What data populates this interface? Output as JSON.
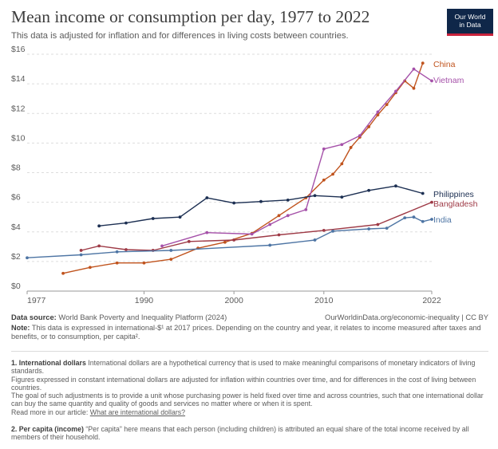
{
  "header": {
    "title": "Mean income or consumption per day, 1977 to 2022",
    "subtitle": "This data is adjusted for inflation and for differences in living costs between countries.",
    "logo_line1": "Our World",
    "logo_line2": "in Data"
  },
  "colors": {
    "China": "#c0531d",
    "Vietnam": "#a551a9",
    "Philippines": "#1c2f52",
    "Bangladesh": "#9e3a46",
    "India": "#4e75a4",
    "grid": "#dddddd",
    "text": "#5b5b5b"
  },
  "chart_data": {
    "type": "line",
    "xlim": [
      1977,
      2022
    ],
    "ylim": [
      0,
      16
    ],
    "y_ticks": [
      0,
      2,
      4,
      6,
      8,
      10,
      12,
      14,
      16
    ],
    "y_tick_labels": [
      "$0",
      "$2",
      "$4",
      "$6",
      "$8",
      "$10",
      "$12",
      "$14",
      "$16"
    ],
    "x_ticks": [
      1977,
      1990,
      2000,
      2010,
      2022
    ],
    "x_tick_labels": [
      "1977",
      "1990",
      "2000",
      "2010",
      "2022"
    ],
    "grid": "horizontal dashed",
    "legend": "line-end labels",
    "series": [
      {
        "name": "China",
        "points": [
          [
            1981,
            1.2
          ],
          [
            1984,
            1.6
          ],
          [
            1987,
            1.9
          ],
          [
            1990,
            1.9
          ],
          [
            1993,
            2.15
          ],
          [
            1996,
            2.9
          ],
          [
            1999,
            3.3
          ],
          [
            2002,
            3.9
          ],
          [
            2005,
            5.1
          ],
          [
            2008,
            6.3
          ],
          [
            2010,
            7.5
          ],
          [
            2011,
            7.9
          ],
          [
            2012,
            8.6
          ],
          [
            2013,
            9.7
          ],
          [
            2014,
            10.4
          ],
          [
            2015,
            11.1
          ],
          [
            2016,
            11.9
          ],
          [
            2017,
            12.6
          ],
          [
            2018,
            13.4
          ],
          [
            2019,
            14.2
          ],
          [
            2020,
            13.7
          ],
          [
            2021,
            15.4
          ]
        ]
      },
      {
        "name": "Vietnam",
        "points": [
          [
            1992,
            3.05
          ],
          [
            1997,
            3.95
          ],
          [
            2002,
            3.85
          ],
          [
            2004,
            4.5
          ],
          [
            2006,
            5.1
          ],
          [
            2008,
            5.5
          ],
          [
            2010,
            9.6
          ],
          [
            2012,
            9.9
          ],
          [
            2014,
            10.5
          ],
          [
            2016,
            12.1
          ],
          [
            2018,
            13.5
          ],
          [
            2020,
            15.0
          ],
          [
            2022,
            14.2
          ]
        ]
      },
      {
        "name": "Philippines",
        "points": [
          [
            1985,
            4.4
          ],
          [
            1988,
            4.6
          ],
          [
            1991,
            4.9
          ],
          [
            1994,
            5.0
          ],
          [
            1997,
            6.3
          ],
          [
            2000,
            5.95
          ],
          [
            2003,
            6.05
          ],
          [
            2006,
            6.15
          ],
          [
            2009,
            6.45
          ],
          [
            2012,
            6.35
          ],
          [
            2015,
            6.8
          ],
          [
            2018,
            7.1
          ],
          [
            2021,
            6.6
          ]
        ]
      },
      {
        "name": "Bangladesh",
        "points": [
          [
            1983,
            2.75
          ],
          [
            1985,
            3.05
          ],
          [
            1988,
            2.8
          ],
          [
            1991,
            2.75
          ],
          [
            1995,
            3.35
          ],
          [
            2000,
            3.45
          ],
          [
            2005,
            3.8
          ],
          [
            2010,
            4.1
          ],
          [
            2016,
            4.5
          ],
          [
            2022,
            6.0
          ]
        ]
      },
      {
        "name": "India",
        "points": [
          [
            1977,
            2.25
          ],
          [
            1983,
            2.45
          ],
          [
            1987,
            2.65
          ],
          [
            1993,
            2.75
          ],
          [
            2004,
            3.1
          ],
          [
            2009,
            3.45
          ],
          [
            2011,
            4.05
          ],
          [
            2015,
            4.2
          ],
          [
            2017,
            4.25
          ],
          [
            2019,
            4.95
          ],
          [
            2020,
            5.0
          ],
          [
            2021,
            4.7
          ],
          [
            2022,
            4.85
          ]
        ]
      }
    ]
  },
  "footer": {
    "source_label": "Data source:",
    "source_text": " World Bank Poverty and Inequality Platform (2024)",
    "url": "OurWorldinData.org/economic-inequality | CC BY",
    "note_label": "Note:",
    "note_text": " This data is expressed in international-$¹ at 2017 prices. Depending on the country and year, it relates to income measured after taxes and benefits, or to consumption, per capita².",
    "fn1_label": "1. International dollars",
    "fn1_text": " International dollars are a hypothetical currency that is used to make meaningful comparisons of monetary indicators of living standards.",
    "fn1_p2": "Figures expressed in constant international dollars are adjusted for inflation within countries over time, and for differences in the cost of living between countries.",
    "fn1_p3": "The goal of such adjustments is to provide a unit whose purchasing power is held fixed over time and across countries, such that one international dollar can buy the same quantity and quality of goods and services no matter where or when it is spent.",
    "fn1_read": "Read more in our article: ",
    "fn1_link": "What are international dollars?",
    "fn2_label": "2. Per capita (income)",
    "fn2_text": " “Per capita” here means that each person (including children) is attributed an equal share of the total income received by all members of their household."
  }
}
